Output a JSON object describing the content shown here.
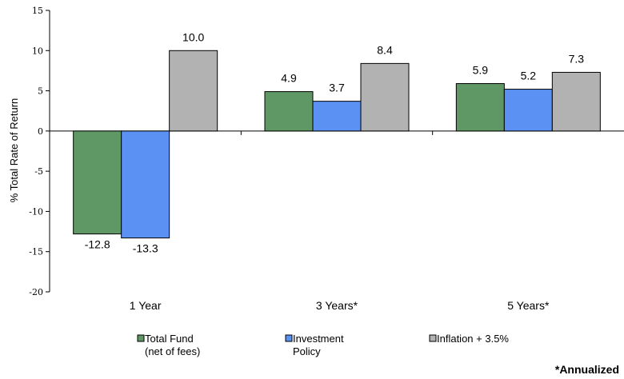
{
  "chart_data": {
    "type": "bar",
    "ylabel": "% Total Rate of Return",
    "ylim": [
      -20,
      15
    ],
    "yticks": [
      -20,
      -15,
      -10,
      -5,
      0,
      5,
      10,
      15
    ],
    "categories": [
      "1 Year",
      "3 Years*",
      "5 Years*"
    ],
    "series": [
      {
        "name": "Total Fund (net of fees)",
        "legend_lines": [
          "Total Fund",
          "(net of fees)"
        ],
        "color": "#5f9864",
        "values": [
          -12.8,
          4.9,
          5.9
        ],
        "labels": [
          "-12.8",
          "4.9",
          "5.9"
        ]
      },
      {
        "name": "Investment Policy",
        "legend_lines": [
          "Investment",
          "Policy"
        ],
        "color": "#5a91f3",
        "values": [
          -13.3,
          3.7,
          5.2
        ],
        "labels": [
          "-13.3",
          "3.7",
          "5.2"
        ]
      },
      {
        "name": "Inflation + 3.5%",
        "legend_lines": [
          "Inflation + 3.5%"
        ],
        "color": "#b2b2b2",
        "values": [
          10.0,
          8.4,
          7.3
        ],
        "labels": [
          "10.0",
          "8.4",
          "7.3"
        ]
      }
    ],
    "grid": false,
    "legend_position": "bottom"
  },
  "footnote": "*Annualized"
}
